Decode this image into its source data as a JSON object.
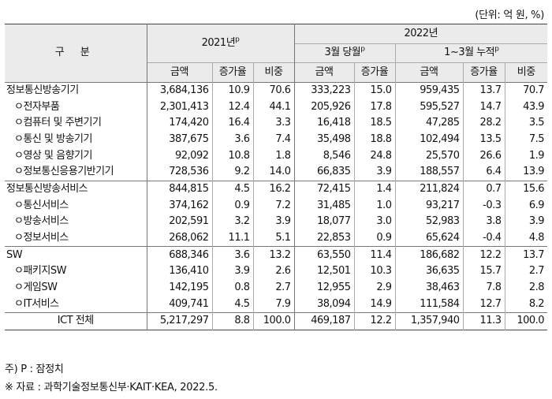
{
  "unit_label": "(단위: 억 원, %)",
  "header": {
    "category": "구 분",
    "year2021": "2021년",
    "year2021_sup": "p",
    "year2022": "2022년",
    "march": "3월 당월",
    "march_sup": "p",
    "cumulative": "1~3월 누적",
    "cumulative_sup": "p",
    "col_amount": "금액",
    "col_growth": "증가율",
    "col_share": "비중"
  },
  "rows": [
    {
      "label": "정보통신방송기기",
      "sub": false,
      "a21": "3,684,136",
      "g21": "10.9",
      "s21": "70.6",
      "am": "333,223",
      "gm": "15.0",
      "ac": "959,435",
      "gc": "13.7",
      "sc": "70.7"
    },
    {
      "label": "ㅇ전자부품",
      "sub": true,
      "a21": "2,301,413",
      "g21": "12.4",
      "s21": "44.1",
      "am": "205,926",
      "gm": "17.8",
      "ac": "595,527",
      "gc": "14.7",
      "sc": "43.9"
    },
    {
      "label": "ㅇ컴퓨터 및 주변기기",
      "sub": true,
      "a21": "174,420",
      "g21": "16.4",
      "s21": "3.3",
      "am": "16,418",
      "gm": "18.5",
      "ac": "47,285",
      "gc": "28.2",
      "sc": "3.5"
    },
    {
      "label": "ㅇ통신 및 방송기기",
      "sub": true,
      "a21": "387,675",
      "g21": "3.6",
      "s21": "7.4",
      "am": "35,498",
      "gm": "18.8",
      "ac": "102,494",
      "gc": "13.5",
      "sc": "7.5"
    },
    {
      "label": "ㅇ영상 및 음향기기",
      "sub": true,
      "a21": "92,092",
      "g21": "10.8",
      "s21": "1.8",
      "am": "8,546",
      "gm": "24.8",
      "ac": "25,570",
      "gc": "26.6",
      "sc": "1.9"
    },
    {
      "label": "ㅇ정보통신응용기반기기",
      "sub": true,
      "a21": "728,536",
      "g21": "9.2",
      "s21": "14.0",
      "am": "66,835",
      "gm": "3.9",
      "ac": "188,557",
      "gc": "6.4",
      "sc": "13.9"
    },
    {
      "label": "정보통신방송서비스",
      "sub": false,
      "a21": "844,815",
      "g21": "4.5",
      "s21": "16.2",
      "am": "72,415",
      "gm": "1.4",
      "ac": "211,824",
      "gc": "0.7",
      "sc": "15.6"
    },
    {
      "label": "ㅇ통신서비스",
      "sub": true,
      "a21": "374,162",
      "g21": "0.9",
      "s21": "7.2",
      "am": "31,485",
      "gm": "1.0",
      "ac": "93,217",
      "gc": "-0.3",
      "sc": "6.9"
    },
    {
      "label": "ㅇ방송서비스",
      "sub": true,
      "a21": "202,591",
      "g21": "3.2",
      "s21": "3.9",
      "am": "18,077",
      "gm": "3.0",
      "ac": "52,983",
      "gc": "3.8",
      "sc": "3.9"
    },
    {
      "label": "ㅇ정보서비스",
      "sub": true,
      "a21": "268,062",
      "g21": "11.1",
      "s21": "5.1",
      "am": "22,853",
      "gm": "0.9",
      "ac": "65,624",
      "gc": "-0.4",
      "sc": "4.8"
    },
    {
      "label": "SW",
      "sub": false,
      "a21": "688,346",
      "g21": "3.6",
      "s21": "13.2",
      "am": "63,550",
      "gm": "11.4",
      "ac": "186,682",
      "gc": "12.2",
      "sc": "13.7"
    },
    {
      "label": "ㅇ패키지SW",
      "sub": true,
      "a21": "136,410",
      "g21": "3.9",
      "s21": "2.6",
      "am": "12,501",
      "gm": "10.3",
      "ac": "36,635",
      "gc": "15.7",
      "sc": "2.7"
    },
    {
      "label": "ㅇ게임SW",
      "sub": true,
      "a21": "142,195",
      "g21": "0.8",
      "s21": "2.7",
      "am": "12,955",
      "gm": "2.9",
      "ac": "38,463",
      "gc": "7.8",
      "sc": "2.8"
    },
    {
      "label": "ㅇIT서비스",
      "sub": true,
      "a21": "409,741",
      "g21": "4.5",
      "s21": "7.9",
      "am": "38,094",
      "gm": "14.9",
      "ac": "111,584",
      "gc": "12.7",
      "sc": "8.2"
    },
    {
      "label": "ICT 전체",
      "sub": false,
      "total": true,
      "a21": "5,217,297",
      "g21": "8.8",
      "s21": "100.0",
      "am": "469,187",
      "gm": "12.2",
      "ac": "1,357,940",
      "gc": "11.3",
      "sc": "100.0"
    }
  ],
  "notes": [
    "주) P : 잠정치",
    "※ 자료 : 과학기술정보통신부·KAIT·KEA, 2022.5."
  ]
}
